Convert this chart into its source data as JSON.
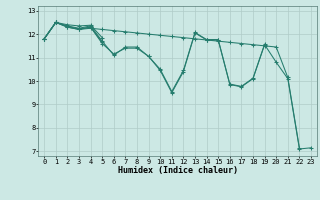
{
  "title": "",
  "xlabel": "Humidex (Indice chaleur)",
  "ylabel": "",
  "xlim": [
    -0.5,
    23.5
  ],
  "ylim": [
    6.8,
    13.2
  ],
  "background_color": "#cce8e4",
  "grid_color": "#b0ccc8",
  "line_color": "#267d6e",
  "series": [
    {
      "x": [
        0,
        1,
        2,
        3,
        4,
        5,
        6,
        7,
        8,
        9,
        10,
        11,
        12,
        13,
        14,
        15,
        16,
        17,
        18,
        19,
        20,
        21,
        22
      ],
      "y": [
        11.8,
        12.5,
        12.3,
        12.2,
        12.25,
        12.2,
        12.15,
        12.1,
        12.05,
        12.0,
        11.95,
        11.9,
        11.85,
        11.8,
        11.75,
        11.7,
        11.65,
        11.6,
        11.55,
        11.5,
        11.45,
        10.15,
        7.15
      ]
    },
    {
      "x": [
        0,
        1,
        2,
        3,
        4,
        5,
        6,
        7,
        8,
        9,
        10,
        11,
        12,
        13,
        14,
        15,
        16,
        17,
        18,
        19,
        20,
        21,
        22,
        23
      ],
      "y": [
        11.8,
        12.5,
        12.3,
        12.2,
        12.3,
        11.6,
        11.15,
        11.4,
        11.4,
        11.05,
        10.45,
        9.5,
        10.4,
        12.05,
        11.75,
        11.75,
        9.85,
        9.75,
        10.1,
        11.55,
        10.8,
        10.1,
        7.1,
        7.15
      ]
    },
    {
      "x": [
        0,
        1,
        2,
        3,
        4,
        5,
        6,
        7,
        8,
        9,
        10,
        11,
        12,
        13,
        14,
        15,
        16,
        17,
        18,
        19
      ],
      "y": [
        11.8,
        12.5,
        12.35,
        12.25,
        12.35,
        11.7,
        11.1,
        11.45,
        11.45,
        11.05,
        10.5,
        9.55,
        10.45,
        12.07,
        11.77,
        11.77,
        9.87,
        9.77,
        10.12,
        11.57
      ]
    },
    {
      "x": [
        0,
        1,
        2,
        3,
        4,
        5
      ],
      "y": [
        11.8,
        12.5,
        12.4,
        12.35,
        12.38,
        11.85
      ]
    },
    {
      "x": [
        0,
        1,
        2,
        3,
        4,
        5
      ],
      "y": [
        11.8,
        12.5,
        12.33,
        12.22,
        12.3,
        11.65
      ]
    }
  ],
  "yticks": [
    7,
    8,
    9,
    10,
    11,
    12,
    13
  ],
  "xticks": [
    0,
    1,
    2,
    3,
    4,
    5,
    6,
    7,
    8,
    9,
    10,
    11,
    12,
    13,
    14,
    15,
    16,
    17,
    18,
    19,
    20,
    21,
    22,
    23
  ],
  "tick_fontsize": 5.0,
  "label_fontsize": 6.0,
  "linewidth": 0.75,
  "markersize": 2.5
}
